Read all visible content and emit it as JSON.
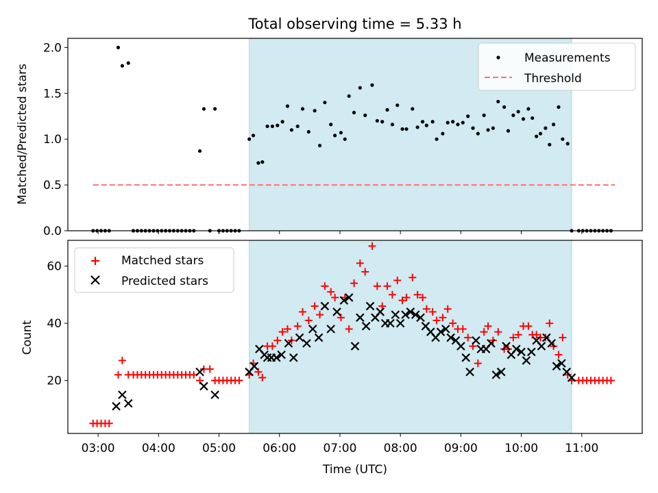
{
  "chart_data": [
    {
      "type": "scatter",
      "panel": "top",
      "title": "Total observing time = 5.33 h",
      "ylabel": "Matched/Predicted stars",
      "ylim": [
        0,
        2.1
      ],
      "yticks": [
        "0.0",
        "0.5",
        "1.0",
        "1.5",
        "2.0"
      ],
      "ytick_values": [
        0,
        0.5,
        1.0,
        1.5,
        2.0
      ],
      "xlim_hours": [
        2.5,
        12.0
      ],
      "grid": false,
      "legend_position": "top-right",
      "shaded_region_hours": [
        5.5,
        10.833
      ],
      "shaded_color": "#add8e6",
      "series": [
        {
          "name": "Measurements",
          "color": "#000000",
          "marker": "dot",
          "x": [
            2.917,
            2.983,
            3.05,
            3.117,
            3.183,
            3.333,
            3.4,
            3.5,
            3.583,
            3.65,
            3.717,
            3.783,
            3.85,
            3.917,
            3.983,
            4.05,
            4.117,
            4.183,
            4.25,
            4.317,
            4.383,
            4.45,
            4.517,
            4.583,
            4.683,
            4.75,
            4.85,
            4.933,
            5.0,
            5.067,
            5.133,
            5.2,
            5.267,
            5.333,
            5.5,
            5.567,
            5.65,
            5.717,
            5.8,
            5.883,
            5.967,
            6.05,
            6.133,
            6.2,
            6.3,
            6.383,
            6.483,
            6.583,
            6.667,
            6.75,
            6.85,
            6.917,
            7.017,
            7.083,
            7.15,
            7.233,
            7.333,
            7.417,
            7.533,
            7.617,
            7.7,
            7.783,
            7.867,
            7.95,
            8.033,
            8.1,
            8.2,
            8.283,
            8.367,
            8.433,
            8.533,
            8.6,
            8.7,
            8.783,
            8.867,
            8.95,
            9.033,
            9.117,
            9.2,
            9.283,
            9.383,
            9.45,
            9.533,
            9.617,
            9.717,
            9.783,
            9.867,
            9.95,
            10.033,
            10.117,
            10.183,
            10.25,
            10.317,
            10.4,
            10.467,
            10.533,
            10.617,
            10.683,
            10.767,
            10.833,
            10.95,
            11.017,
            11.083,
            11.15,
            11.217,
            11.283,
            11.35,
            11.417,
            11.483
          ],
          "y": [
            0,
            0,
            0,
            0,
            0,
            2.0,
            1.8,
            1.83,
            0,
            0,
            0,
            0,
            0,
            0,
            0,
            0,
            0,
            0,
            0,
            0,
            0,
            0,
            0,
            0,
            0.87,
            1.33,
            0,
            1.33,
            0,
            0,
            0,
            0,
            0,
            0,
            1.0,
            1.04,
            0.74,
            0.75,
            1.14,
            1.14,
            1.15,
            1.19,
            1.36,
            1.1,
            1.14,
            1.33,
            1.08,
            1.31,
            0.93,
            1.4,
            1.16,
            1.04,
            1.07,
            1.0,
            1.47,
            1.29,
            1.56,
            1.26,
            1.59,
            1.2,
            1.19,
            1.32,
            1.16,
            1.37,
            1.11,
            1.11,
            1.33,
            1.13,
            1.19,
            1.15,
            1.19,
            1.0,
            1.06,
            1.18,
            1.19,
            1.16,
            1.18,
            1.25,
            1.12,
            1.06,
            1.26,
            1.1,
            1.12,
            1.41,
            1.35,
            1.09,
            1.26,
            1.3,
            1.22,
            1.33,
            1.23,
            1.03,
            1.06,
            1.12,
            0.94,
            1.16,
            1.35,
            1.0,
            0.95,
            0,
            0,
            0,
            0,
            0,
            0,
            0,
            0,
            0,
            0
          ]
        },
        {
          "name": "Threshold",
          "color": "#ff7070",
          "style": "dashed",
          "x": [
            2.917,
            11.55
          ],
          "y": [
            0.5,
            0.5
          ]
        }
      ]
    },
    {
      "type": "scatter",
      "panel": "bottom",
      "xlabel": "Time (UTC)",
      "ylabel": "Count",
      "ylim": [
        1.5,
        69
      ],
      "yticks": [
        "20",
        "40",
        "60"
      ],
      "ytick_values": [
        20,
        40,
        60
      ],
      "xlim_hours": [
        2.5,
        12.0
      ],
      "xticks": [
        "03:00",
        "04:00",
        "05:00",
        "06:00",
        "07:00",
        "08:00",
        "09:00",
        "10:00",
        "11:00"
      ],
      "xtick_values": [
        3,
        4,
        5,
        6,
        7,
        8,
        9,
        10,
        11
      ],
      "grid": false,
      "legend_position": "top-left",
      "shaded_region_hours": [
        5.5,
        10.833
      ],
      "shaded_color": "#add8e6",
      "series": [
        {
          "name": "Matched stars",
          "color": "#ff0000",
          "marker": "plus",
          "x": [
            2.917,
            2.983,
            3.05,
            3.117,
            3.183,
            3.333,
            3.4,
            3.5,
            3.583,
            3.65,
            3.717,
            3.783,
            3.85,
            3.917,
            3.983,
            4.05,
            4.117,
            4.183,
            4.25,
            4.317,
            4.383,
            4.45,
            4.517,
            4.583,
            4.683,
            4.75,
            4.85,
            4.933,
            5.0,
            5.067,
            5.133,
            5.2,
            5.267,
            5.333,
            5.5,
            5.567,
            5.65,
            5.717,
            5.8,
            5.883,
            5.967,
            6.05,
            6.133,
            6.2,
            6.3,
            6.383,
            6.483,
            6.583,
            6.667,
            6.75,
            6.85,
            6.917,
            7.017,
            7.083,
            7.15,
            7.233,
            7.333,
            7.417,
            7.533,
            7.617,
            7.7,
            7.783,
            7.867,
            7.95,
            8.033,
            8.1,
            8.2,
            8.283,
            8.367,
            8.433,
            8.533,
            8.6,
            8.7,
            8.783,
            8.867,
            8.95,
            9.033,
            9.117,
            9.2,
            9.283,
            9.383,
            9.45,
            9.533,
            9.617,
            9.717,
            9.783,
            9.867,
            9.95,
            10.033,
            10.117,
            10.183,
            10.25,
            10.317,
            10.4,
            10.467,
            10.533,
            10.617,
            10.683,
            10.767,
            10.833,
            10.95,
            11.017,
            11.083,
            11.15,
            11.217,
            11.283,
            11.35,
            11.417,
            11.483
          ],
          "y": [
            5,
            5,
            5,
            5,
            5,
            22,
            27,
            22,
            22,
            22,
            22,
            22,
            22,
            22,
            22,
            22,
            22,
            22,
            22,
            22,
            22,
            22,
            22,
            22,
            20,
            24,
            24,
            20,
            20,
            20,
            20,
            20,
            20,
            20,
            22,
            26,
            23,
            21,
            32,
            32,
            34,
            37,
            38,
            34,
            39,
            44,
            41,
            46,
            43,
            53,
            51,
            49,
            42,
            49,
            38,
            54,
            61,
            58,
            67,
            53,
            46,
            53,
            50,
            55,
            48,
            49,
            56,
            50,
            49,
            45,
            44,
            41,
            42,
            45,
            40,
            38,
            38,
            35,
            32,
            26,
            37,
            39,
            34,
            37,
            31,
            31,
            35,
            36,
            39,
            39,
            36,
            36,
            35,
            35,
            40,
            32,
            29,
            35,
            22,
            20,
            20,
            20,
            20,
            20,
            20,
            20,
            20,
            20,
            20
          ]
        },
        {
          "name": "Predicted stars",
          "color": "#000000",
          "marker": "x",
          "x": [
            3.3,
            3.4,
            3.5,
            4.683,
            4.75,
            4.933,
            5.5,
            5.583,
            5.667,
            5.75,
            5.8,
            5.867,
            5.95,
            6.033,
            6.15,
            6.233,
            6.333,
            6.45,
            6.55,
            6.65,
            6.75,
            6.85,
            6.95,
            7.067,
            7.15,
            7.25,
            7.333,
            7.433,
            7.5,
            7.583,
            7.667,
            7.75,
            7.833,
            7.917,
            8.0,
            8.083,
            8.167,
            8.25,
            8.333,
            8.417,
            8.5,
            8.583,
            8.667,
            8.75,
            8.833,
            8.917,
            9.0,
            9.083,
            9.15,
            9.25,
            9.333,
            9.417,
            9.5,
            9.583,
            9.667,
            9.75,
            9.833,
            9.917,
            10.0,
            10.083,
            10.167,
            10.25,
            10.333,
            10.417,
            10.5,
            10.583,
            10.667,
            10.75,
            10.833
          ],
          "y": [
            11,
            15,
            12,
            23,
            18,
            15,
            23,
            25,
            31,
            29,
            28,
            28,
            28,
            29,
            33,
            28,
            35,
            33,
            38,
            35,
            46,
            38,
            44,
            48,
            49,
            32,
            42,
            39,
            46,
            42,
            44,
            40,
            40,
            43,
            40,
            43,
            44,
            43,
            42,
            39,
            37,
            35,
            37,
            38,
            35,
            34,
            32,
            28,
            23,
            34,
            31,
            31,
            33,
            22,
            23,
            32,
            29,
            31,
            30,
            27,
            30,
            34,
            32,
            35,
            33,
            25,
            26,
            23,
            21
          ]
        }
      ]
    }
  ]
}
